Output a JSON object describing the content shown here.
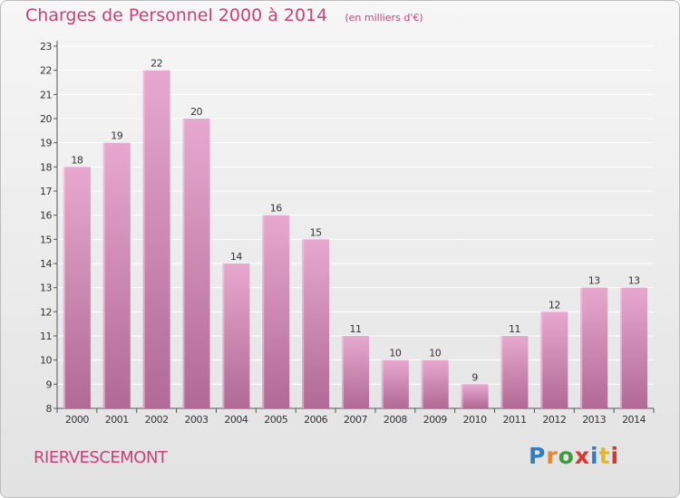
{
  "header": {
    "title": "Charges de Personnel 2000 à 2014",
    "subtitle": "(en milliers d'€)"
  },
  "commune": "RIERVESCEMONT",
  "brand": {
    "name": "Proxiti",
    "letter_colors": [
      "#2f7fc1",
      "#e8872a",
      "#3a9d3a",
      "#d9362f",
      "#2f7fc1",
      "#e3b92b",
      "#d9362f"
    ]
  },
  "colors": {
    "title": "#c9407a",
    "bar_top": "#e7a8cf",
    "bar_bottom": "#b06a95",
    "axis": "#555555",
    "grid": "#ffffff"
  },
  "chart_data": {
    "type": "bar",
    "title": "Charges de Personnel 2000 à 2014",
    "subtitle": "(en milliers d'€)",
    "categories": [
      "2000",
      "2001",
      "2002",
      "2003",
      "2004",
      "2005",
      "2006",
      "2007",
      "2008",
      "2009",
      "2010",
      "2011",
      "2012",
      "2013",
      "2014"
    ],
    "values": [
      18,
      19,
      22,
      20,
      14,
      16,
      15,
      11,
      10,
      10,
      9,
      11,
      12,
      13,
      13
    ],
    "ylim": [
      8,
      23
    ],
    "yticks": [
      8,
      9,
      10,
      11,
      12,
      13,
      14,
      15,
      16,
      17,
      18,
      19,
      20,
      21,
      22,
      23
    ],
    "grid": true,
    "data_labels": true,
    "legend": "none"
  }
}
